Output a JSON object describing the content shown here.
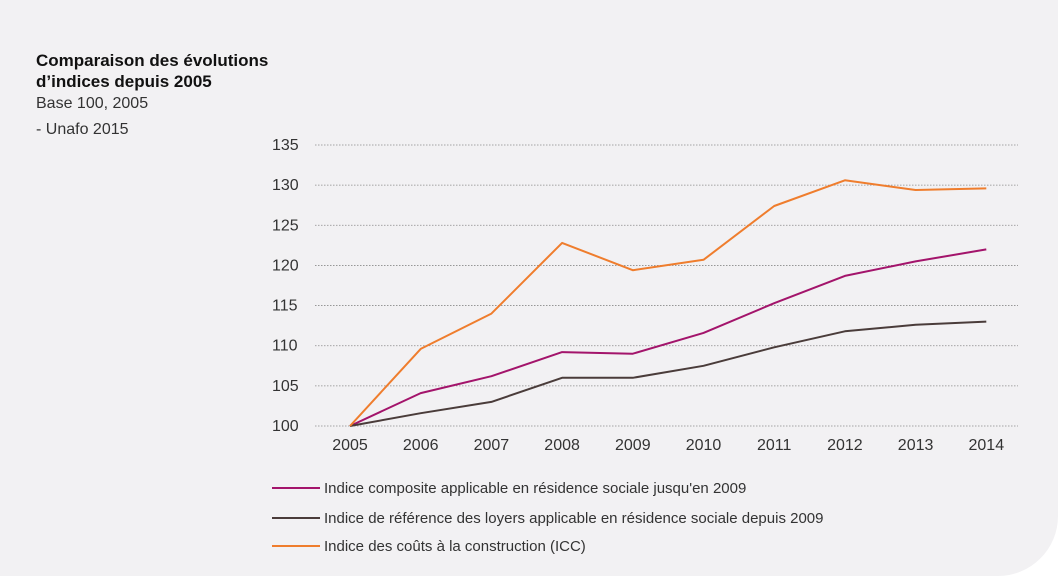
{
  "chart_data": {
    "type": "line",
    "title": "Comparaison des évolutions d’indices depuis 2005",
    "subtitle_lines": [
      "Base 100, 2005",
      "- Unafo 2015"
    ],
    "x": [
      "2005",
      "2006",
      "2007",
      "2008",
      "2009",
      "2010",
      "2011",
      "2012",
      "2013",
      "2014"
    ],
    "ylim": [
      100,
      135
    ],
    "yticks": [
      100,
      105,
      110,
      115,
      120,
      125,
      130,
      135
    ],
    "grid": true,
    "legend_position": "bottom",
    "series": [
      {
        "name": "Indice composite applicable en résidence sociale jusqu'en 2009",
        "color": "#a3146b",
        "values": [
          100,
          104.1,
          106.2,
          109.2,
          109.0,
          111.6,
          115.3,
          118.7,
          120.5,
          122.0
        ]
      },
      {
        "name": "Indice de référence des loyers applicable en résidence sociale depuis 2009",
        "color": "#4a3c3a",
        "values": [
          100,
          101.6,
          103.0,
          106.0,
          106.0,
          107.5,
          109.8,
          111.8,
          112.6,
          113.0
        ]
      },
      {
        "name": "Indice des coûts à la construction (ICC)",
        "color": "#ef7d2d",
        "values": [
          100,
          109.6,
          114.0,
          122.8,
          119.4,
          120.7,
          127.4,
          130.6,
          129.4,
          129.6
        ]
      }
    ]
  }
}
